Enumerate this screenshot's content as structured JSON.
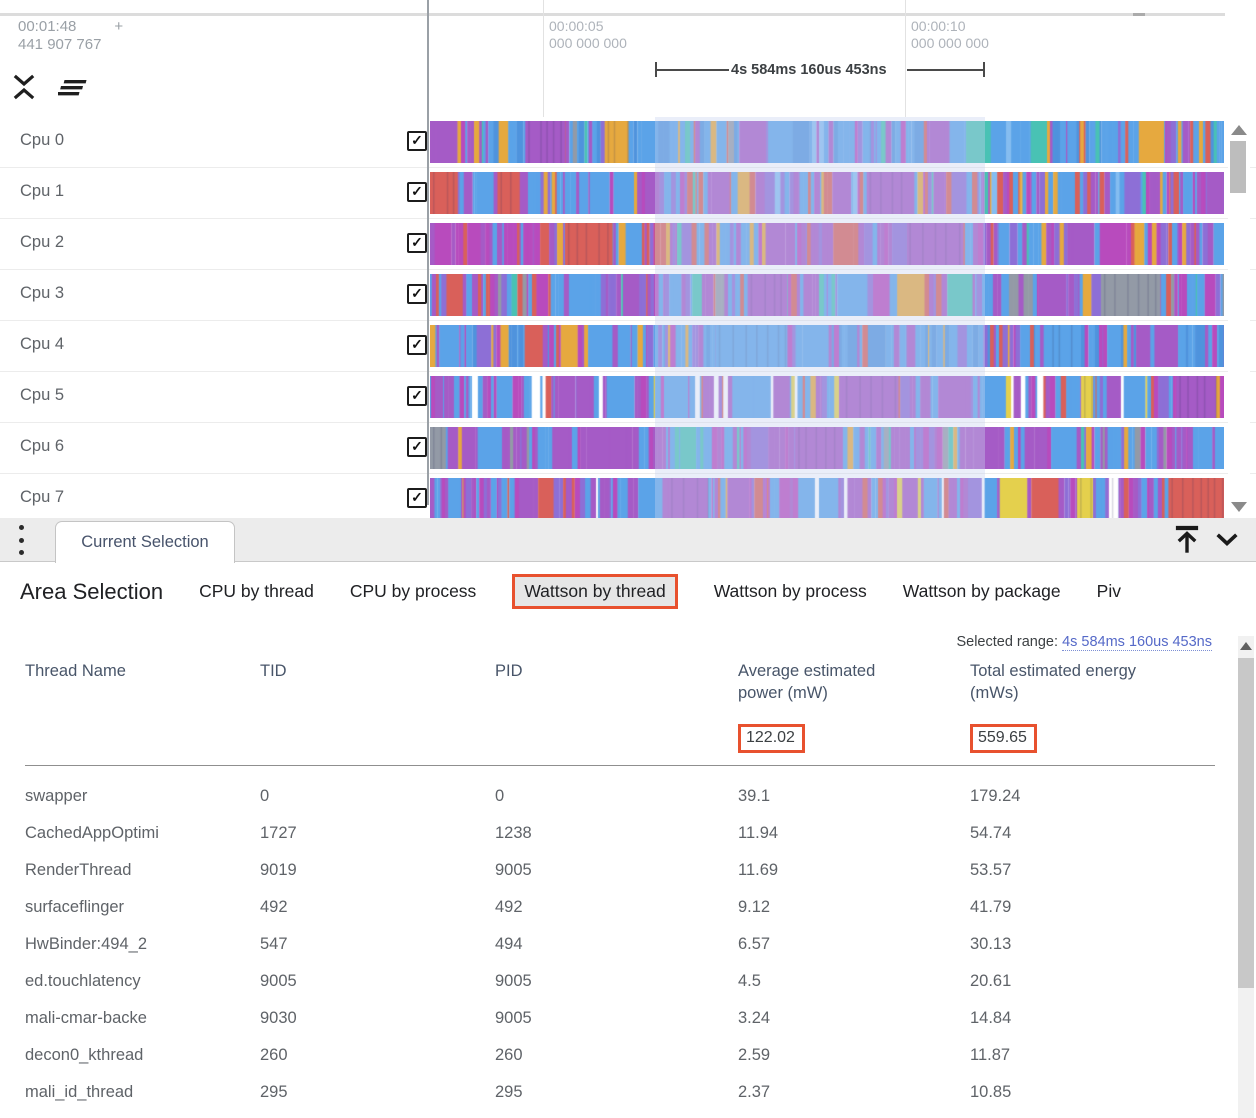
{
  "header": {
    "clock_time": "00:01:48",
    "clock_plus": "+",
    "clock_ns": "441 907 767",
    "ruler_ticks": [
      {
        "time": "00:00:05",
        "ns": "000 000 000"
      },
      {
        "time": "00:00:10",
        "ns": "000 000 000"
      }
    ],
    "span_label": "4s 584ms 160us 453ns"
  },
  "tracks": [
    {
      "label": "Cpu 0",
      "checked": true
    },
    {
      "label": "Cpu 1",
      "checked": true
    },
    {
      "label": "Cpu 2",
      "checked": true
    },
    {
      "label": "Cpu 3",
      "checked": true
    },
    {
      "label": "Cpu 4",
      "checked": true
    },
    {
      "label": "Cpu 5",
      "checked": true
    },
    {
      "label": "Cpu 6",
      "checked": true
    },
    {
      "label": "Cpu 7",
      "checked": true
    }
  ],
  "panel": {
    "tab_label": "Current Selection",
    "title": "Area Selection",
    "tabs": [
      {
        "label": "CPU by thread",
        "active": false
      },
      {
        "label": "CPU by process",
        "active": false
      },
      {
        "label": "Wattson by thread",
        "active": true
      },
      {
        "label": "Wattson by process",
        "active": false
      },
      {
        "label": "Wattson by package",
        "active": false
      },
      {
        "label": "Piv",
        "active": false
      }
    ],
    "selected_range_label": "Selected range:",
    "selected_range_value": "4s 584ms 160us 453ns"
  },
  "table": {
    "columns": [
      "Thread Name",
      "TID",
      "PID",
      "Average estimated power (mW)",
      "Total estimated energy (mWs)"
    ],
    "totals": {
      "avg_power": "122.02",
      "total_energy": "559.65"
    },
    "rows": [
      {
        "thread": "swapper",
        "tid": "0",
        "pid": "0",
        "power": "39.1",
        "energy": "179.24"
      },
      {
        "thread": "CachedAppOptimi",
        "tid": "1727",
        "pid": "1238",
        "power": "11.94",
        "energy": "54.74"
      },
      {
        "thread": "RenderThread",
        "tid": "9019",
        "pid": "9005",
        "power": "11.69",
        "energy": "53.57"
      },
      {
        "thread": "surfaceflinger",
        "tid": "492",
        "pid": "492",
        "power": "9.12",
        "energy": "41.79"
      },
      {
        "thread": "HwBinder:494_2",
        "tid": "547",
        "pid": "494",
        "power": "6.57",
        "energy": "30.13"
      },
      {
        "thread": "ed.touchlatency",
        "tid": "9005",
        "pid": "9005",
        "power": "4.5",
        "energy": "20.61"
      },
      {
        "thread": "mali-cmar-backe",
        "tid": "9030",
        "pid": "9005",
        "power": "3.24",
        "energy": "14.84"
      },
      {
        "thread": "decon0_kthread",
        "tid": "260",
        "pid": "260",
        "power": "2.59",
        "energy": "11.87"
      },
      {
        "thread": "mali_id_thread",
        "tid": "295",
        "pid": "295",
        "power": "2.37",
        "energy": "10.85"
      }
    ]
  },
  "colors": {
    "accent": "#e8512e",
    "link": "#5569c8",
    "track_palette": {
      "blue": "#5ba3e8",
      "blue2": "#4f93dd",
      "lightblue": "#85bdf0",
      "purple": "#a55bc6",
      "blueviolet": "#8d6fd6",
      "magenta": "#b84bbd",
      "red": "#d9605a",
      "orange": "#e6a93f",
      "yellow": "#e4d04d",
      "teal": "#49c2b4",
      "gray": "#939aa6",
      "white": "#ffffff"
    }
  }
}
